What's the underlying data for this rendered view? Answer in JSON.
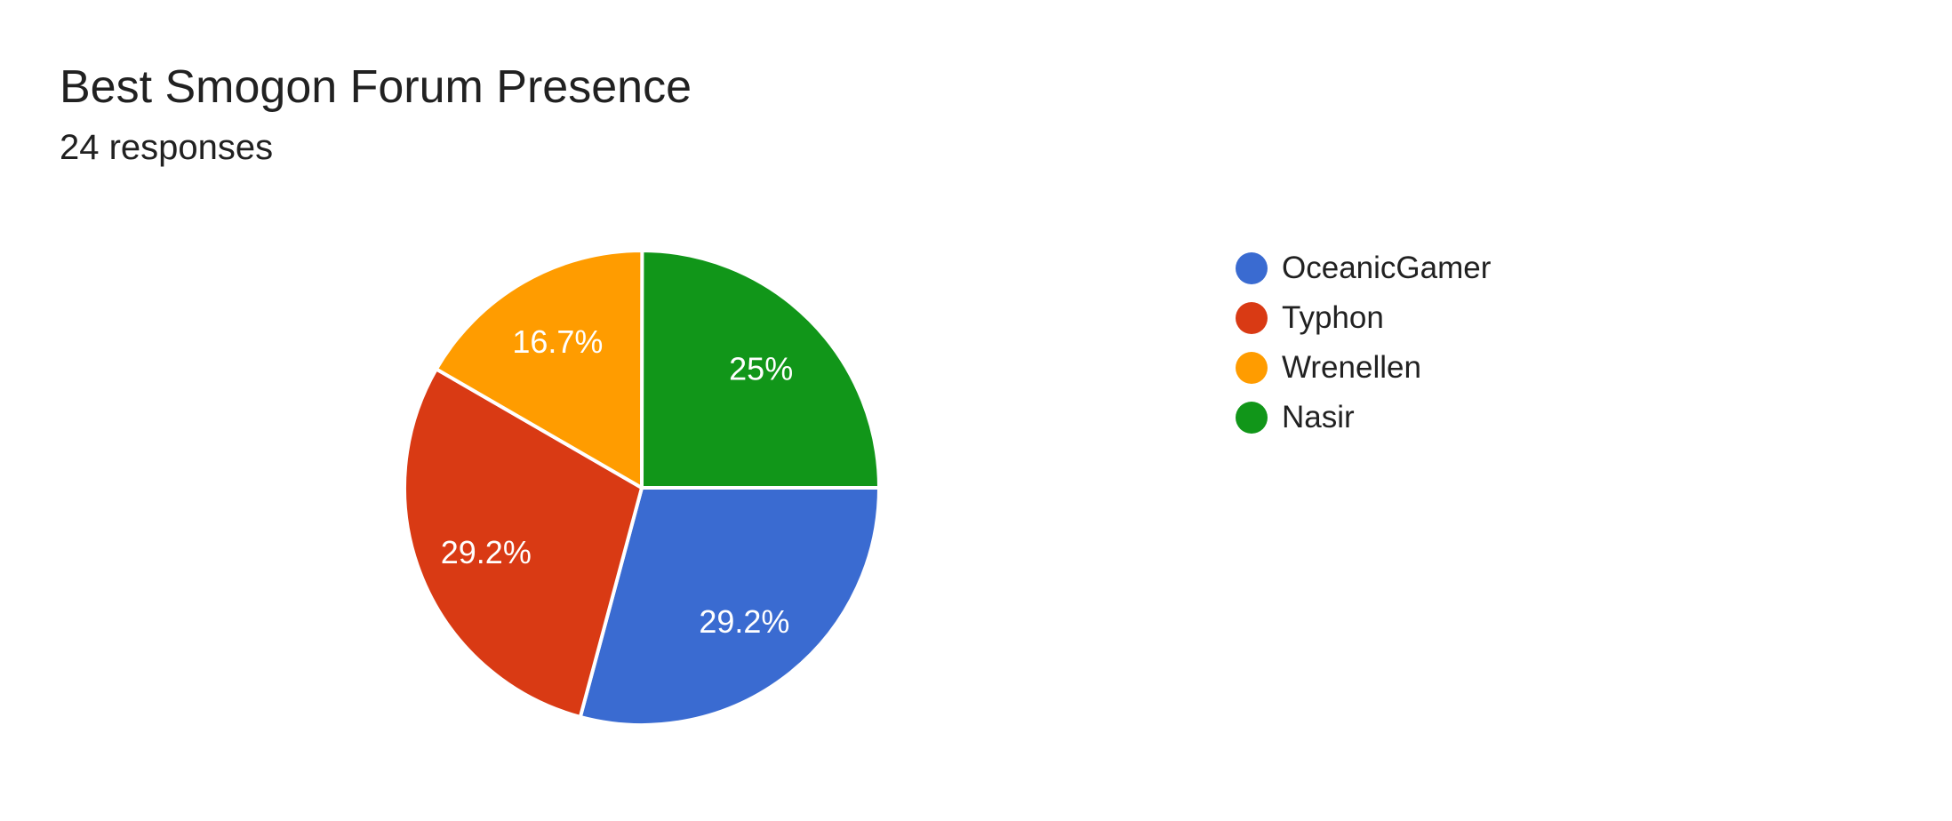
{
  "chart_data": {
    "type": "pie",
    "title": "Best Smogon Forum Presence",
    "subtitle": "24 responses",
    "legend_position": "right",
    "direction": "clockwise",
    "start_angle_deg": 90,
    "label_color": "#ffffff",
    "slices": [
      {
        "label": "OceanicGamer",
        "pct": 29.2,
        "display": "29.2%",
        "color": "#3A6BD1"
      },
      {
        "label": "Typhon",
        "pct": 29.2,
        "display": "29.2%",
        "color": "#D93A14"
      },
      {
        "label": "Wrenellen",
        "pct": 16.7,
        "display": "16.7%",
        "color": "#FF9C00"
      },
      {
        "label": "Nasir",
        "pct": 25.0,
        "display": "25%",
        "color": "#119619"
      }
    ]
  }
}
